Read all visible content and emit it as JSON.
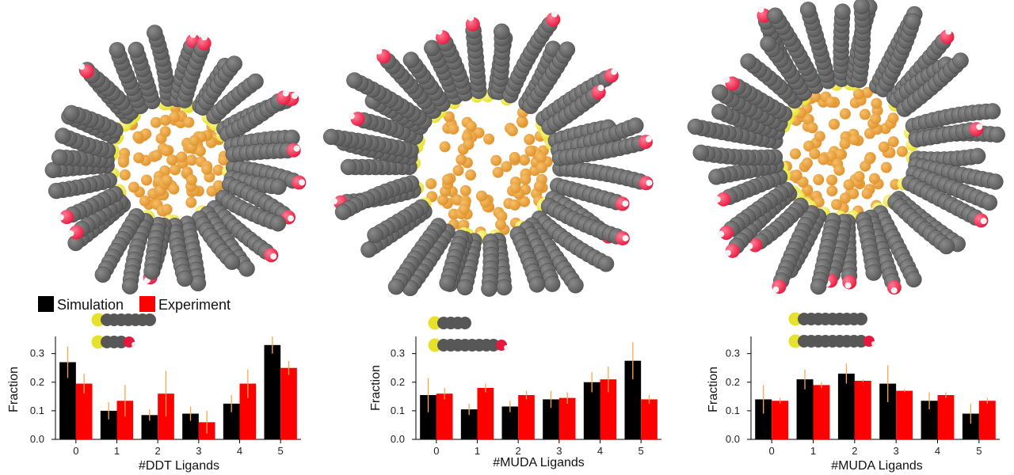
{
  "colors": {
    "simulation": "#000000",
    "experiment": "#ff0000",
    "errorbar": "#ffa64d",
    "carbon": "#575757",
    "sulfur": "#e6e12a",
    "oxygen": "#e8173e",
    "hydrogen": "#ffffff",
    "gold": "#e0902a"
  },
  "legend": {
    "items": [
      "Simulation",
      "Experiment"
    ]
  },
  "chart_data": [
    {
      "type": "bar",
      "categories": [
        "0",
        "1",
        "2",
        "3",
        "4",
        "5"
      ],
      "xlabel": "#DDT Ligands",
      "ylabel": "Fraction",
      "ylim": [
        0,
        0.36
      ],
      "yticks": [
        "0.0",
        "0.1",
        "0.2",
        "0.3"
      ],
      "series": [
        {
          "name": "Simulation",
          "values": [
            0.27,
            0.1,
            0.085,
            0.09,
            0.125,
            0.33
          ],
          "err": [
            0.055,
            0.03,
            0.02,
            0.025,
            0.03,
            0.03
          ]
        },
        {
          "name": "Experiment",
          "values": [
            0.195,
            0.135,
            0.16,
            0.06,
            0.195,
            0.25
          ],
          "err": [
            0.035,
            0.055,
            0.08,
            0.04,
            0.05,
            0.025
          ]
        }
      ]
    },
    {
      "type": "bar",
      "categories": [
        "0",
        "1",
        "2",
        "3",
        "4",
        "5"
      ],
      "xlabel": "#MUDA Ligands",
      "ylabel": "Fraction",
      "ylim": [
        0,
        0.36
      ],
      "yticks": [
        "0.0",
        "0.1",
        "0.2",
        "0.3"
      ],
      "series": [
        {
          "name": "Simulation",
          "values": [
            0.155,
            0.105,
            0.115,
            0.14,
            0.2,
            0.275
          ],
          "err": [
            0.06,
            0.02,
            0.02,
            0.03,
            0.035,
            0.065
          ]
        },
        {
          "name": "Experiment",
          "values": [
            0.16,
            0.18,
            0.155,
            0.145,
            0.21,
            0.14
          ],
          "err": [
            0.02,
            0.015,
            0.015,
            0.02,
            0.045,
            0.015
          ]
        }
      ]
    },
    {
      "type": "bar",
      "categories": [
        "0",
        "1",
        "2",
        "3",
        "4",
        "5"
      ],
      "xlabel": "#MUDA Ligands",
      "ylabel": "Fraction",
      "ylim": [
        0,
        0.36
      ],
      "yticks": [
        "0.0",
        "0.1",
        "0.2",
        "0.3"
      ],
      "series": [
        {
          "name": "Simulation",
          "values": [
            0.14,
            0.21,
            0.23,
            0.195,
            0.135,
            0.09
          ],
          "err": [
            0.05,
            0.035,
            0.035,
            0.065,
            0.03,
            0.035
          ]
        },
        {
          "name": "Experiment",
          "values": [
            0.135,
            0.19,
            0.205,
            0.17,
            0.155,
            0.135
          ],
          "err": [
            0.01,
            0.01,
            0.005,
            0.005,
            0.01,
            0.01
          ]
        }
      ]
    }
  ]
}
